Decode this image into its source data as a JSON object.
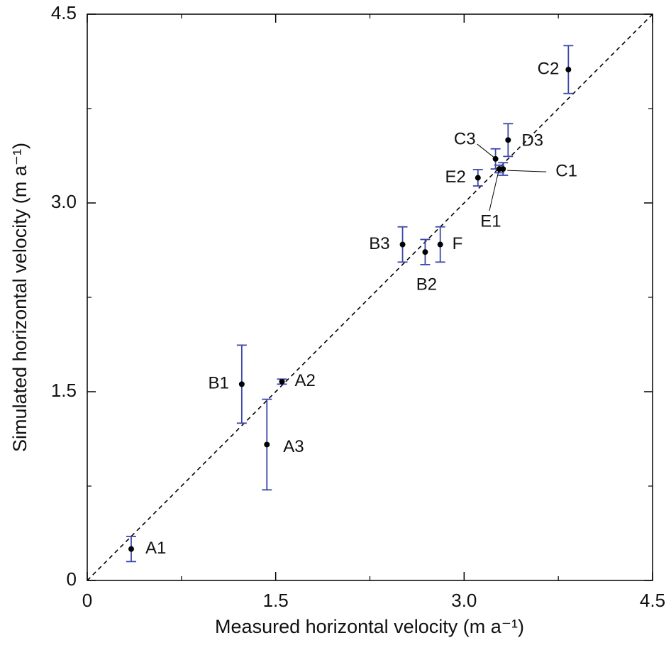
{
  "chart_data": {
    "type": "scatter",
    "xlabel": "Measured horizontal  velocity  (m a⁻¹)",
    "ylabel": "Simulated horizontal  velocity  (m a⁻¹)",
    "point_labels": [
      "A1",
      "B1",
      "A2",
      "A3",
      "B3",
      "B2",
      "F",
      "E2",
      "C3",
      "E1",
      "C1",
      "D3",
      "C2"
    ],
    "x": [
      0.35,
      1.23,
      1.55,
      1.43,
      2.51,
      2.69,
      2.81,
      3.11,
      3.25,
      3.28,
      3.31,
      3.35,
      3.83
    ],
    "y": [
      0.25,
      1.56,
      1.58,
      1.08,
      2.67,
      2.61,
      2.67,
      3.2,
      3.35,
      3.27,
      3.27,
      3.5,
      4.06
    ],
    "yerr": [
      0.1,
      0.31,
      0.02,
      0.36,
      0.14,
      0.1,
      0.14,
      0.065,
      0.08,
      0.03,
      0.05,
      0.13,
      0.19
    ],
    "marker_color": "#000000",
    "errorbar_color": "#3b46a8",
    "diagonal": true,
    "xlim": [
      0,
      4.5
    ],
    "ylim": [
      0,
      4.5
    ],
    "xticks": [
      0,
      1.5,
      {
        "value": 3,
        "label": "3.0"
      },
      4.5
    ],
    "yticks": [
      0,
      1.5,
      {
        "value": 3,
        "label": "3.0"
      },
      4.5
    ],
    "minor_xticks": [
      0.75,
      2.25,
      3.75
    ],
    "minor_yticks": [
      0.75,
      2.25,
      3.75
    ]
  }
}
